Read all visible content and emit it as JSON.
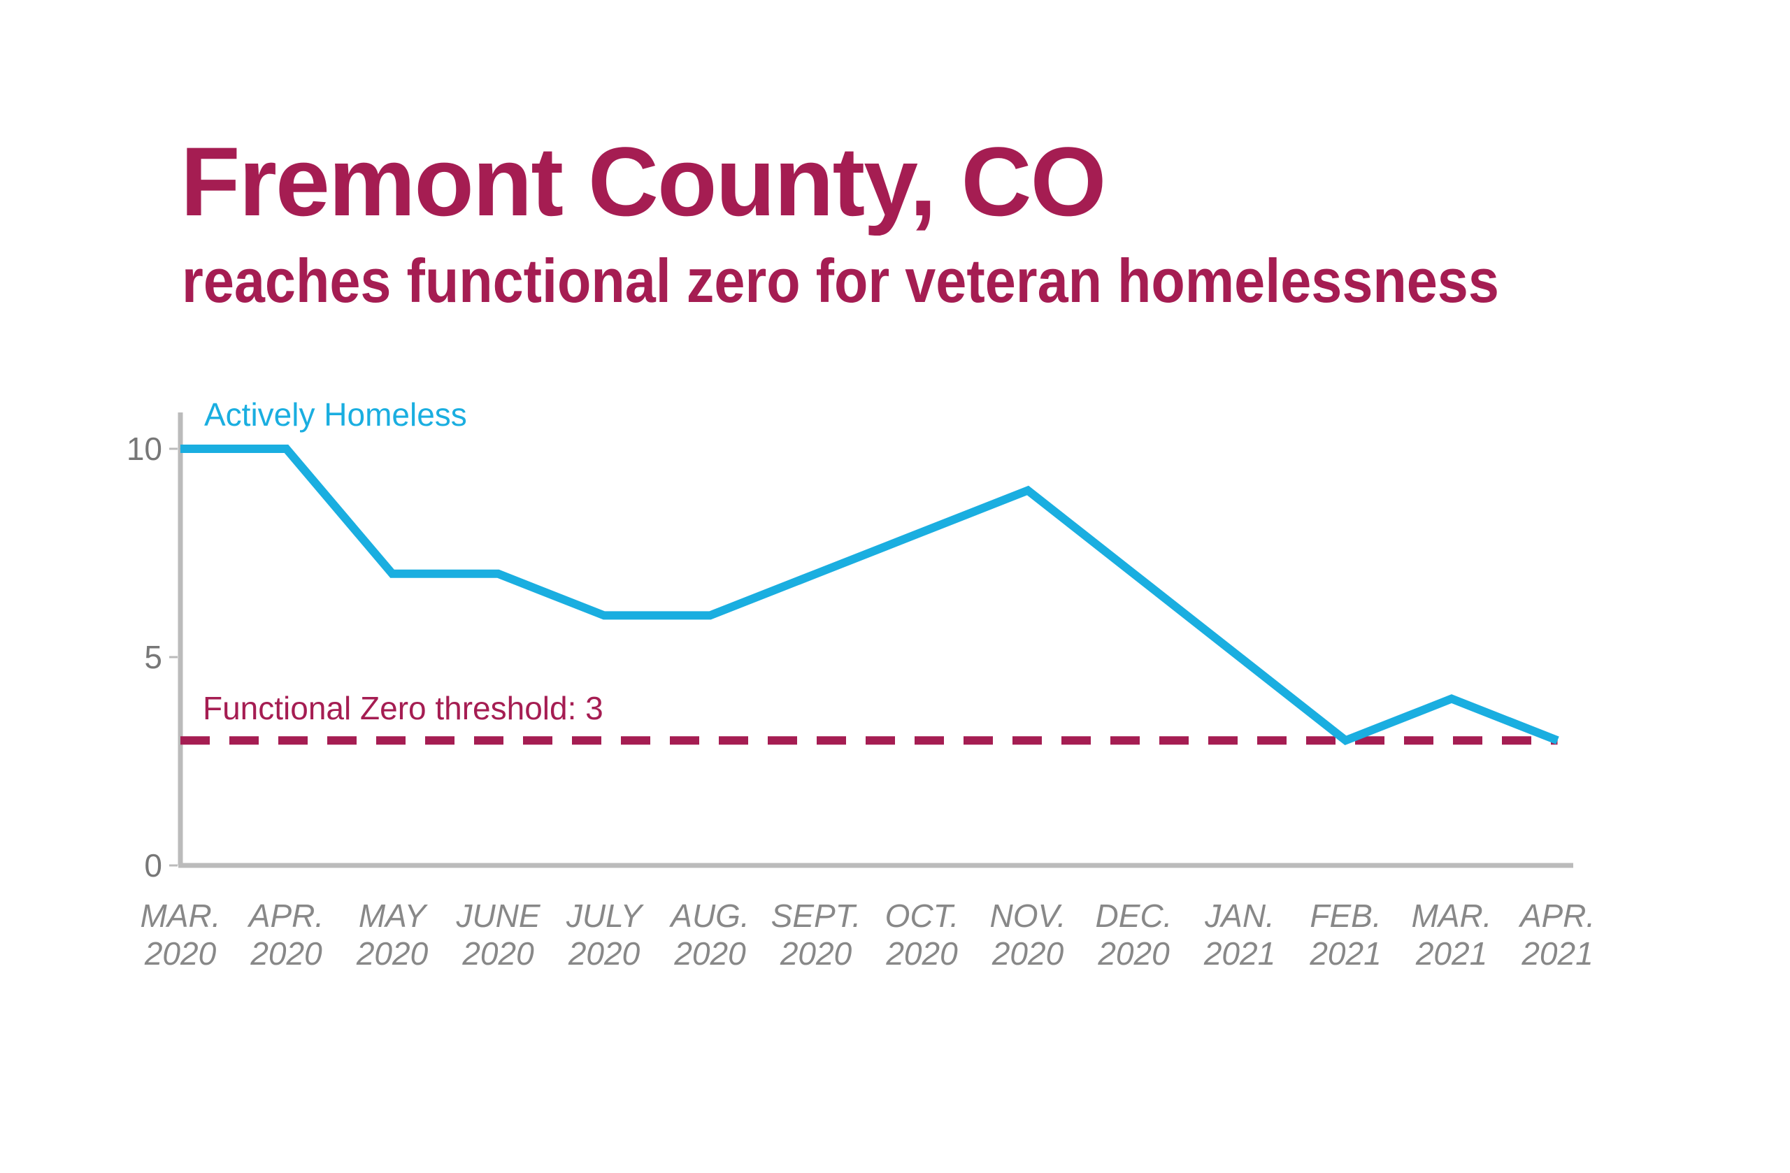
{
  "header": {
    "title": "Fremont County, CO",
    "subtitle": "reaches functional zero for veteran homelessness"
  },
  "colors": {
    "title": "#a51d52",
    "series": "#1aaee0",
    "threshold": "#a51d52",
    "axis": "#bbbbbb",
    "tick_text": "#888888"
  },
  "chart_data": {
    "type": "line",
    "title": "Fremont County, CO",
    "subtitle": "reaches functional zero for veteran homelessness",
    "xlabel": "",
    "ylabel": "",
    "ylim": [
      0,
      10
    ],
    "yticks": [
      0,
      5,
      10
    ],
    "grid": false,
    "categories": [
      [
        "MAR.",
        "2020"
      ],
      [
        "APR.",
        "2020"
      ],
      [
        "MAY",
        "2020"
      ],
      [
        "JUNE",
        "2020"
      ],
      [
        "JULY",
        "2020"
      ],
      [
        "AUG.",
        "2020"
      ],
      [
        "SEPT.",
        "2020"
      ],
      [
        "OCT.",
        "2020"
      ],
      [
        "NOV.",
        "2020"
      ],
      [
        "DEC.",
        "2020"
      ],
      [
        "JAN.",
        "2021"
      ],
      [
        "FEB.",
        "2021"
      ],
      [
        "MAR.",
        "2021"
      ],
      [
        "APR.",
        "2021"
      ]
    ],
    "series": [
      {
        "name": "Actively Homeless",
        "values": [
          10,
          10,
          7,
          7,
          6,
          6,
          7,
          8,
          9,
          7,
          5,
          3,
          4,
          3
        ]
      }
    ],
    "threshold": {
      "label": "Functional Zero threshold: 3",
      "value": 3
    }
  }
}
